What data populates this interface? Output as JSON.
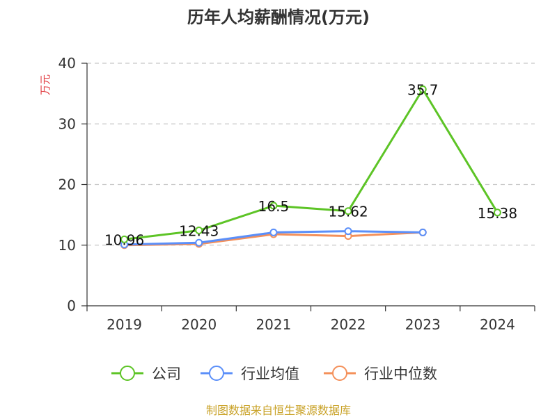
{
  "chart_data": {
    "type": "line",
    "title": "历年人均薪酬情况(万元)",
    "ylabel": "万元",
    "xlabel": "",
    "categories": [
      "2019",
      "2020",
      "2021",
      "2022",
      "2023",
      "2024"
    ],
    "ylim": [
      0,
      40
    ],
    "yticks": [
      0,
      10,
      20,
      30,
      40
    ],
    "grid": true,
    "legend_position": "bottom",
    "series": [
      {
        "name": "公司",
        "color": "#5dc426",
        "values": [
          10.96,
          12.43,
          16.5,
          15.62,
          35.7,
          15.38
        ],
        "labels": [
          "10.96",
          "12.43",
          "16.5",
          "15.62",
          "35.7",
          "15.38"
        ]
      },
      {
        "name": "行业均值",
        "color": "#5b8ff9",
        "values": [
          10.1,
          10.4,
          12.1,
          12.3,
          12.1,
          null
        ]
      },
      {
        "name": "行业中位数",
        "color": "#f4905a",
        "values": [
          10.0,
          10.2,
          11.8,
          11.5,
          12.1,
          null
        ]
      }
    ]
  },
  "footer": "制图数据来自恒生聚源数据库"
}
